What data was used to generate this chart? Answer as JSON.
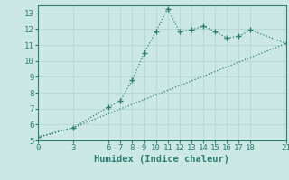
{
  "line1_x": [
    0,
    3,
    6,
    7,
    8,
    9,
    10,
    11,
    12,
    13,
    14,
    15,
    16,
    17,
    18,
    21
  ],
  "line1_y": [
    5.2,
    5.8,
    7.1,
    7.5,
    8.8,
    10.5,
    11.85,
    13.3,
    11.85,
    11.95,
    12.2,
    11.85,
    11.45,
    11.55,
    11.95,
    11.1
  ],
  "line2_x": [
    0,
    3,
    21
  ],
  "line2_y": [
    5.2,
    5.8,
    11.1
  ],
  "line_color": "#2e7d72",
  "bg_color": "#cce8e4",
  "grid_color": "#b8d8d4",
  "xlabel": "Humidex (Indice chaleur)",
  "xlim": [
    0,
    21
  ],
  "ylim": [
    5,
    13.5
  ],
  "xticks": [
    0,
    3,
    6,
    7,
    8,
    9,
    10,
    11,
    12,
    13,
    14,
    15,
    16,
    17,
    18,
    21
  ],
  "yticks": [
    5,
    6,
    7,
    8,
    9,
    10,
    11,
    12,
    13
  ],
  "tick_fontsize": 6.5,
  "xlabel_fontsize": 7.5,
  "marker": "+",
  "marker_size": 4,
  "linewidth": 0.9
}
